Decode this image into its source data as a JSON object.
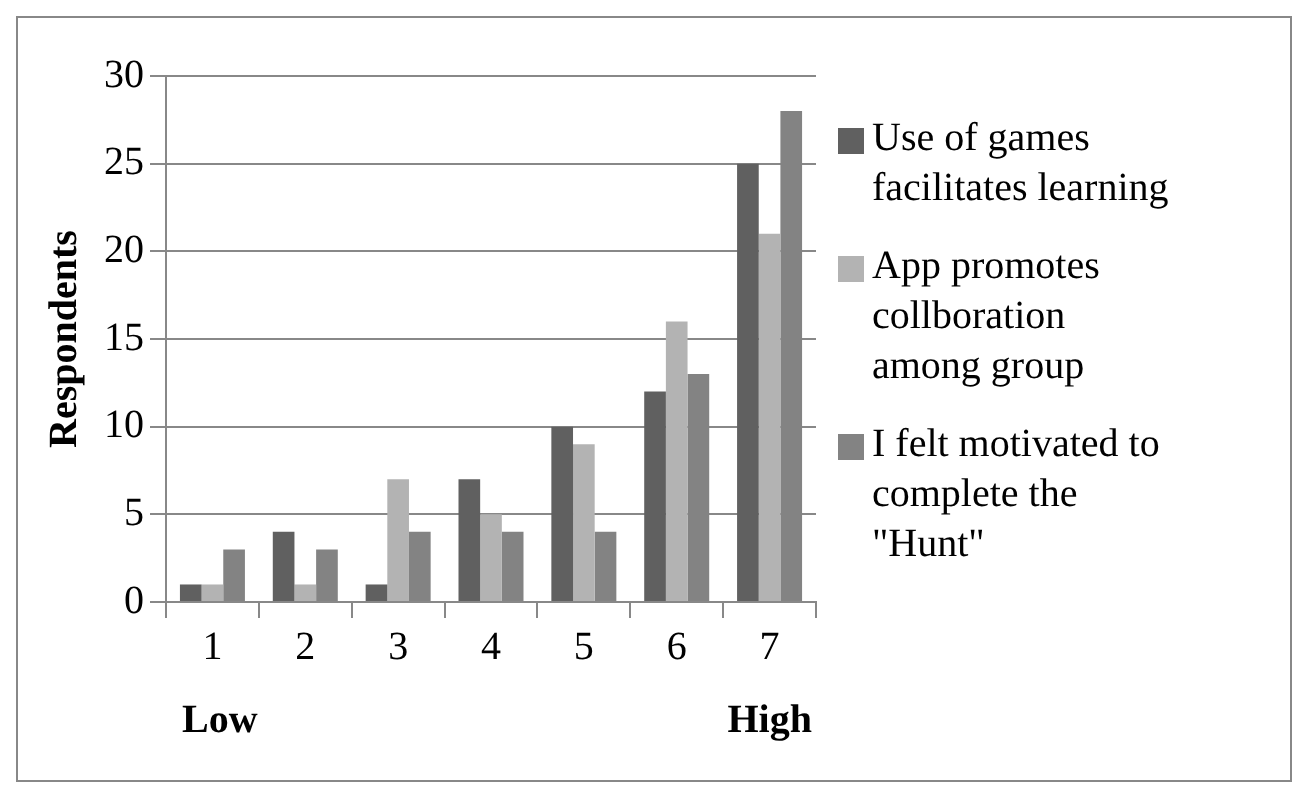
{
  "chart_data": {
    "type": "bar",
    "ylabel": "Respondents",
    "categories": [
      "1",
      "2",
      "3",
      "4",
      "5",
      "6",
      "7"
    ],
    "series": [
      {
        "name": "Use of games facilitates learning",
        "color": "#606060",
        "values": [
          1,
          4,
          1,
          7,
          10,
          12,
          25
        ]
      },
      {
        "name": "App promotes collboration among group",
        "color": "#b3b3b3",
        "values": [
          1,
          1,
          7,
          5,
          9,
          16,
          21
        ]
      },
      {
        "name": "I felt motivated to complete the \"Hunt\"",
        "color": "#838383",
        "values": [
          3,
          3,
          4,
          4,
          4,
          13,
          28
        ]
      }
    ],
    "ylim": [
      0,
      30
    ],
    "yticks": [
      0,
      5,
      10,
      15,
      20,
      25,
      30
    ],
    "grid": "y",
    "legend": "right",
    "annotations": [
      "Low",
      "High"
    ]
  }
}
